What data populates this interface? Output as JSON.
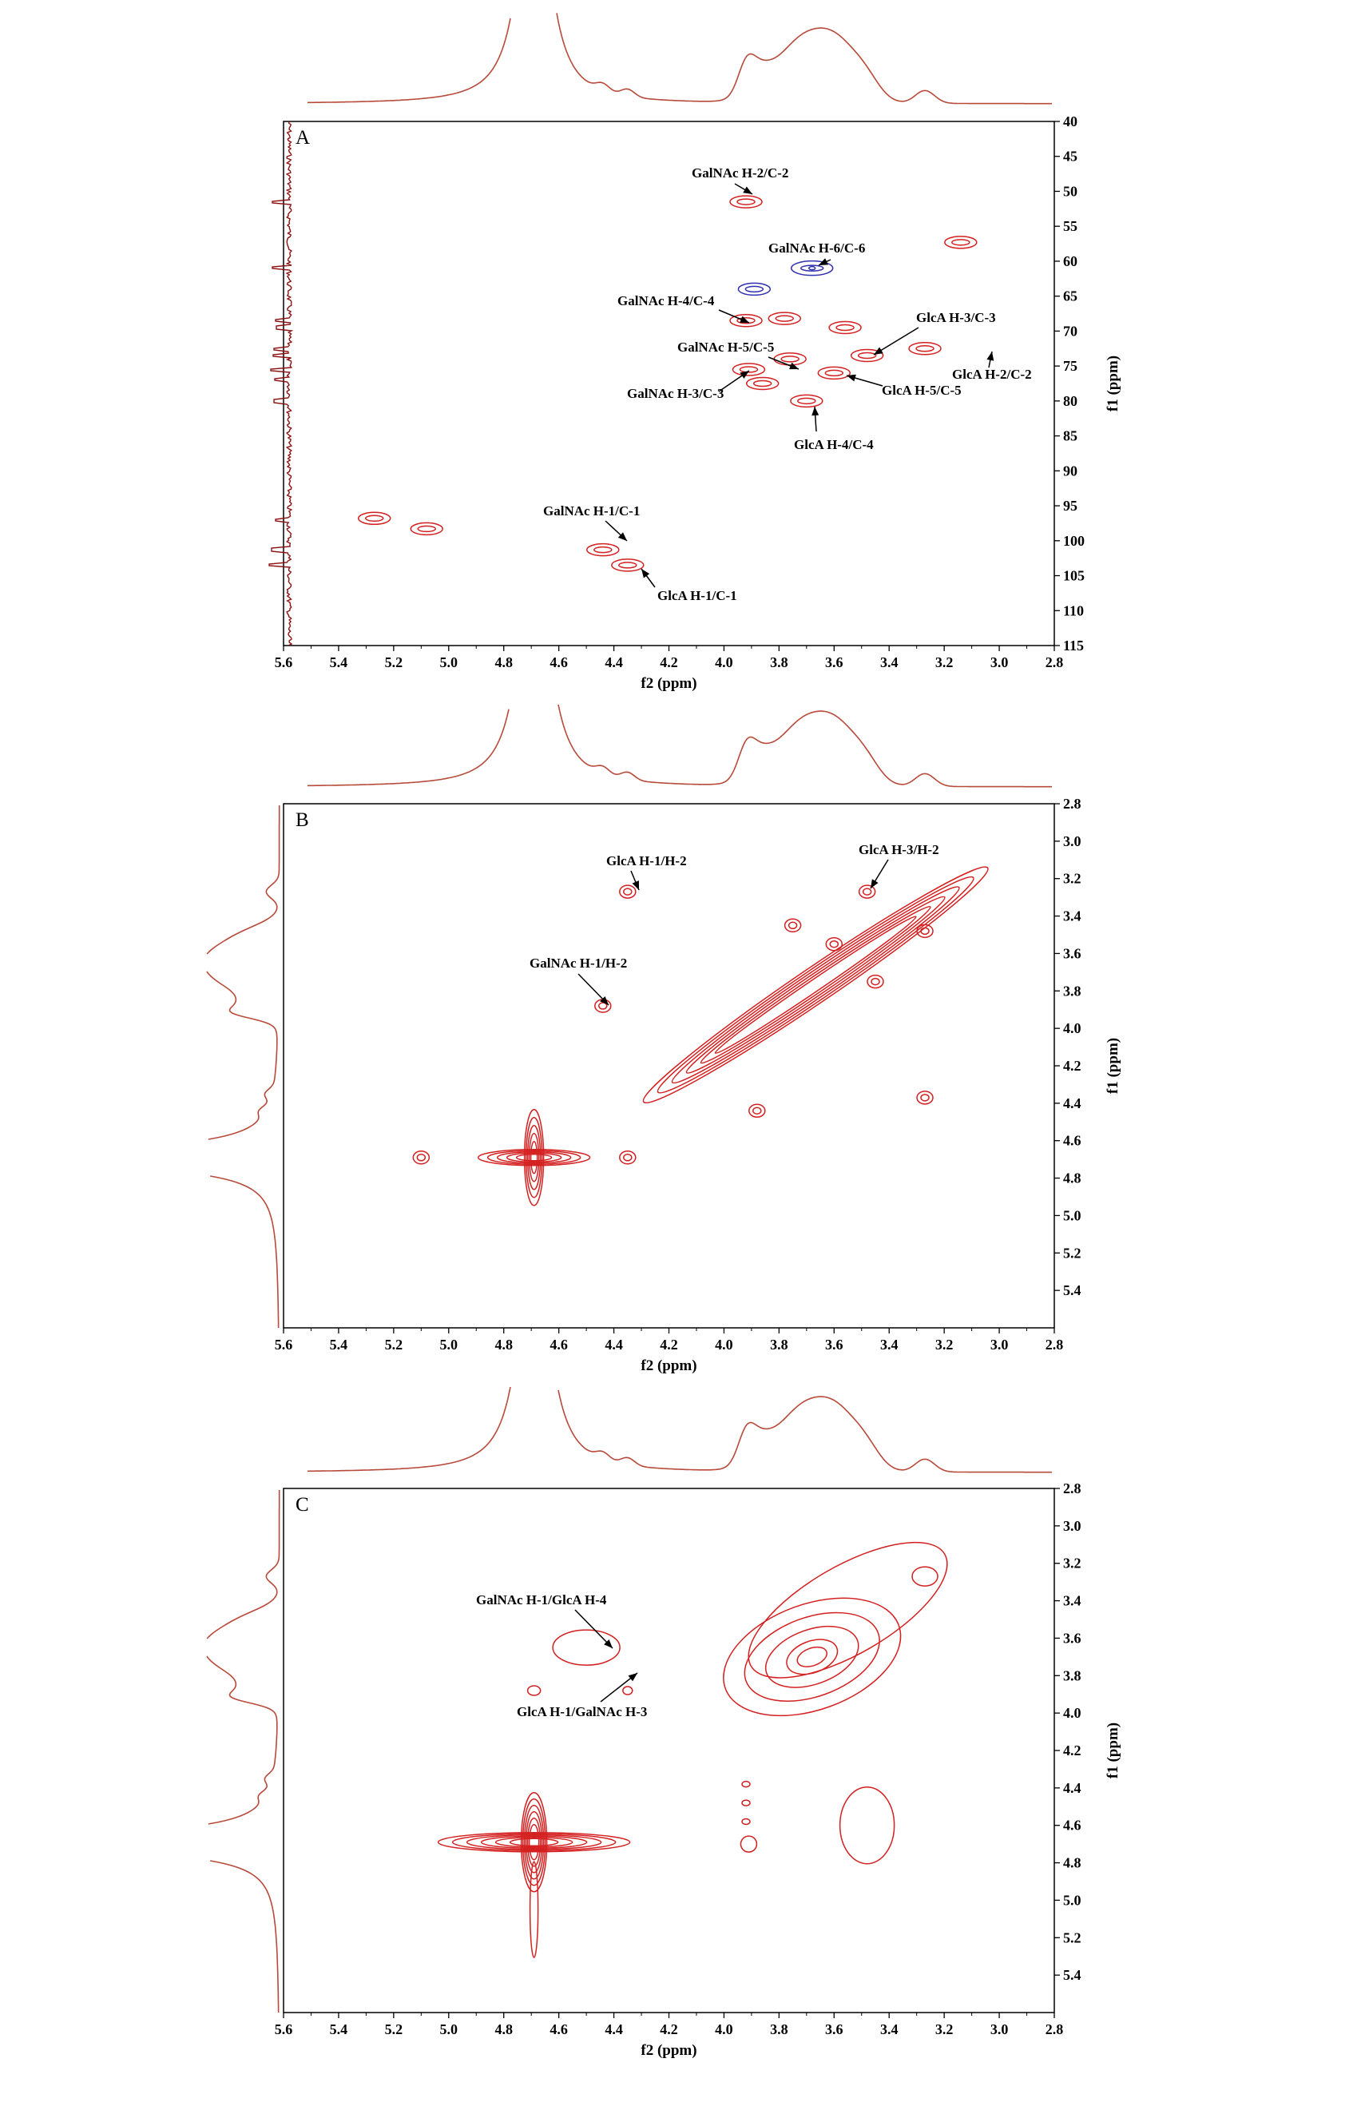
{
  "colors": {
    "contour_positive": "#d42020",
    "contour_negative": "#3030b0",
    "projection": "#b84a3a",
    "axis": "#000000"
  },
  "chart_data": [
    {
      "type": "heatmap",
      "panel_label": "A",
      "xlabel": "f2 (ppm)",
      "ylabel": "f1 (ppm)",
      "xlim": [
        5.6,
        2.8
      ],
      "ylim": [
        40,
        115
      ],
      "x_ticks": [
        "5.6",
        "5.4",
        "5.2",
        "5.0",
        "4.8",
        "4.6",
        "4.4",
        "4.2",
        "4.0",
        "3.8",
        "3.6",
        "3.4",
        "3.2",
        "3.0",
        "2.8"
      ],
      "y_ticks": [
        "40",
        "45",
        "50",
        "55",
        "60",
        "65",
        "70",
        "75",
        "80",
        "85",
        "90",
        "95",
        "100",
        "105",
        "110",
        "115"
      ],
      "peaks": [
        {
          "x": 3.92,
          "y": 51.5,
          "sign": 1
        },
        {
          "x": 3.14,
          "y": 57.3,
          "sign": 1
        },
        {
          "x": 3.68,
          "y": 61.0,
          "sign": -1
        },
        {
          "x": 3.89,
          "y": 64.0,
          "sign": -1
        },
        {
          "x": 3.92,
          "y": 68.5,
          "sign": 1
        },
        {
          "x": 3.78,
          "y": 68.2,
          "sign": 1
        },
        {
          "x": 3.56,
          "y": 69.5,
          "sign": 1
        },
        {
          "x": 3.48,
          "y": 73.5,
          "sign": 1
        },
        {
          "x": 3.27,
          "y": 72.5,
          "sign": 1
        },
        {
          "x": 3.76,
          "y": 74.0,
          "sign": 1
        },
        {
          "x": 3.6,
          "y": 76.0,
          "sign": 1
        },
        {
          "x": 3.91,
          "y": 75.5,
          "sign": 1
        },
        {
          "x": 3.86,
          "y": 77.5,
          "sign": 1
        },
        {
          "x": 3.7,
          "y": 80.0,
          "sign": 1
        },
        {
          "x": 4.44,
          "y": 101.3,
          "sign": 1
        },
        {
          "x": 4.35,
          "y": 103.5,
          "sign": 1
        },
        {
          "x": 5.08,
          "y": 98.3,
          "sign": 1
        },
        {
          "x": 5.27,
          "y": 96.8,
          "sign": 1
        }
      ],
      "annotations": [
        {
          "text": "GalNAc H-2/C-2",
          "x": 3.92,
          "y": 51.5
        },
        {
          "text": "GalNAc H-6/C-6",
          "x": 3.68,
          "y": 61.0
        },
        {
          "text": "GalNAc H-4/C-4",
          "x": 3.92,
          "y": 68.5
        },
        {
          "text": "GlcA H-3/C-3",
          "x": 3.48,
          "y": 73.5
        },
        {
          "text": "GalNAc H-5/C-5",
          "x": 3.76,
          "y": 74.0
        },
        {
          "text": "GlcA H-2/C-2",
          "x": 3.27,
          "y": 72.5
        },
        {
          "text": "GalNAc H-3/C-3",
          "x": 3.91,
          "y": 75.5
        },
        {
          "text": "GlcA H-5/C-5",
          "x": 3.6,
          "y": 76.0
        },
        {
          "text": "GlcA H-4/C-4",
          "x": 3.7,
          "y": 80.0
        },
        {
          "text": "GalNAc H-1/C-1",
          "x": 4.44,
          "y": 101.3
        },
        {
          "text": "GlcA H-1/C-1",
          "x": 4.35,
          "y": 103.5
        }
      ]
    },
    {
      "type": "heatmap",
      "panel_label": "B",
      "xlabel": "f2 (ppm)",
      "ylabel": "f1 (ppm)",
      "xlim": [
        5.6,
        2.8
      ],
      "ylim": [
        2.8,
        5.6
      ],
      "x_ticks": [
        "5.6",
        "5.4",
        "5.2",
        "5.0",
        "4.8",
        "4.6",
        "4.4",
        "4.2",
        "4.0",
        "3.8",
        "3.6",
        "3.4",
        "3.2",
        "3.0",
        "2.8"
      ],
      "y_ticks": [
        "2.8",
        "3.0",
        "3.2",
        "3.4",
        "3.6",
        "3.8",
        "4.0",
        "4.2",
        "4.4",
        "4.6",
        "4.8",
        "5.0",
        "5.2",
        "5.4"
      ],
      "peaks": [
        {
          "x": 4.35,
          "y": 3.27
        },
        {
          "x": 3.48,
          "y": 3.27
        },
        {
          "x": 4.44,
          "y": 3.88
        },
        {
          "x": 3.27,
          "y": 4.37
        },
        {
          "x": 3.27,
          "y": 3.48
        },
        {
          "x": 3.88,
          "y": 4.44
        },
        {
          "x": 3.6,
          "y": 3.55
        },
        {
          "x": 3.75,
          "y": 3.45
        },
        {
          "x": 3.45,
          "y": 3.75
        },
        {
          "x": 4.69,
          "y": 4.5
        },
        {
          "x": 4.69,
          "y": 5.1
        },
        {
          "x": 5.1,
          "y": 4.69
        },
        {
          "x": 4.35,
          "y": 4.69
        }
      ],
      "annotations": [
        {
          "text": "GlcA H-1/H-2",
          "x": 4.35,
          "y": 3.27
        },
        {
          "text": "GlcA H-3/H-2",
          "x": 3.48,
          "y": 3.27
        },
        {
          "text": "GalNAc H-1/H-2",
          "x": 4.44,
          "y": 3.88
        }
      ]
    },
    {
      "type": "heatmap",
      "panel_label": "C",
      "xlabel": "f2 (ppm)",
      "ylabel": "f1 (ppm)",
      "xlim": [
        5.6,
        2.8
      ],
      "ylim": [
        2.8,
        5.6
      ],
      "x_ticks": [
        "5.6",
        "5.4",
        "5.2",
        "5.0",
        "4.8",
        "4.6",
        "4.4",
        "4.2",
        "4.0",
        "3.8",
        "3.6",
        "3.4",
        "3.2",
        "3.0",
        "2.8"
      ],
      "y_ticks": [
        "2.8",
        "3.0",
        "3.2",
        "3.4",
        "3.6",
        "3.8",
        "4.0",
        "4.2",
        "4.4",
        "4.6",
        "4.8",
        "5.0",
        "5.2",
        "5.4"
      ],
      "peaks": [
        {
          "x": 3.68,
          "y": 3.7
        },
        {
          "x": 4.5,
          "y": 3.65
        },
        {
          "x": 4.35,
          "y": 3.88
        },
        {
          "x": 3.77,
          "y": 4.55
        },
        {
          "x": 3.27,
          "y": 3.27
        },
        {
          "x": 4.69,
          "y": 4.69
        }
      ],
      "annotations": [
        {
          "text": "GalNAc H-1/GlcA H-4",
          "x": 4.45,
          "y": 3.65
        },
        {
          "text": "GlcA H-1/GalNAc H-3",
          "x": 4.35,
          "y": 3.88
        }
      ]
    }
  ]
}
